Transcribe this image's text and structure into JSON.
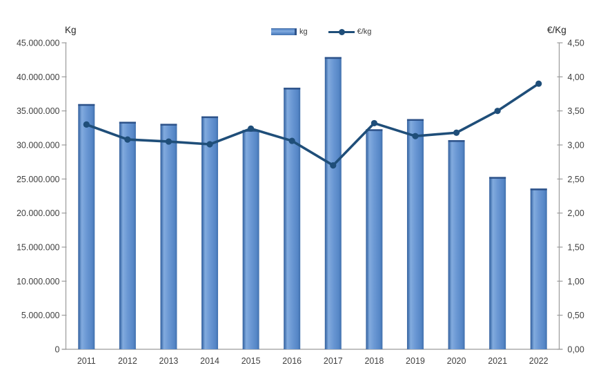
{
  "chart_data": {
    "type": "bar",
    "subtype": "bar+line combo, dual axis",
    "categories": [
      "2011",
      "2012",
      "2013",
      "2014",
      "2015",
      "2016",
      "2017",
      "2018",
      "2019",
      "2020",
      "2021",
      "2022"
    ],
    "series": [
      {
        "name": "kg",
        "type": "bar",
        "axis": "left",
        "values": [
          36000000,
          33400000,
          33100000,
          34200000,
          32200000,
          38400000,
          42900000,
          32300000,
          33800000,
          30700000,
          25300000,
          23600000
        ]
      },
      {
        "name": "€/kg",
        "type": "line",
        "axis": "right",
        "values": [
          3.3,
          3.08,
          3.05,
          3.01,
          3.24,
          3.06,
          2.7,
          3.32,
          3.13,
          3.18,
          3.5,
          3.9
        ]
      }
    ],
    "title": "",
    "xlabel": "",
    "left_axis": {
      "title": "Kg",
      "min": 0,
      "max": 45000000,
      "step": 5000000,
      "tick_labels": [
        "45.000.000",
        "40.000.000",
        "35.000.000",
        "30.000.000",
        "25.000.000",
        "20.000.000",
        "15.000.000",
        "10.000.000",
        "5.000.000",
        "0"
      ]
    },
    "right_axis": {
      "title": "€/Kg",
      "min": 0,
      "max": 4.5,
      "step": 0.5,
      "tick_labels": [
        "4,50",
        "4,00",
        "3,50",
        "3,00",
        "2,50",
        "2,00",
        "1,50",
        "1,00",
        "0,50",
        "0,00"
      ]
    },
    "legend": {
      "position": "top-center",
      "entries": [
        "kg",
        "€/kg"
      ]
    },
    "grid": false,
    "colors": {
      "bar_fill": "#6b98d4",
      "bar_light": "#7fa9dd",
      "bar_edge": "#35609c",
      "bar_cap": "#2d5289",
      "line": "#1f4e79",
      "axis": "#9a9a9a",
      "text": "#3f3f3f"
    }
  }
}
